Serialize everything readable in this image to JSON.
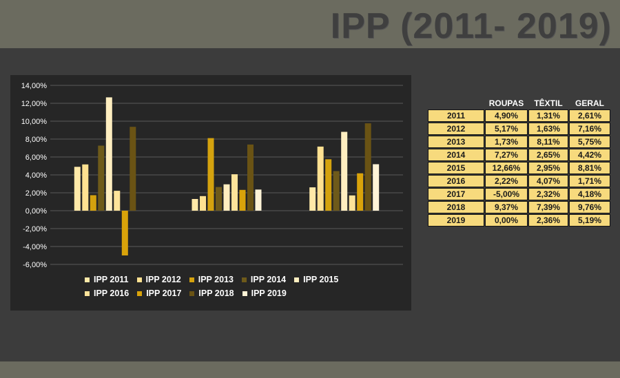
{
  "title": "IPP (2011- 2019)",
  "colors": {
    "background": "#6b6b5f",
    "panel": "#3c3c3c",
    "chart_bg": "#262626",
    "table_cell": "#f7da7d"
  },
  "chart_data": {
    "type": "bar",
    "categories": [
      "ROUPAS",
      "TÊXTIL",
      "GERAL"
    ],
    "ylim": [
      -6,
      14
    ],
    "yticks": [
      "14,00%",
      "12,00%",
      "10,00%",
      "8,00%",
      "6,00%",
      "4,00%",
      "2,00%",
      "0,00%",
      "-2,00%",
      "-4,00%",
      "-6,00%"
    ],
    "grid": true,
    "legend_position": "bottom",
    "category_labels_visible": false,
    "series": [
      {
        "name": "IPP 2011",
        "color": "#ffe9a8",
        "values": [
          4.9,
          1.31,
          2.61
        ]
      },
      {
        "name": "IPP 2012",
        "color": "#ffe191",
        "values": [
          5.17,
          1.63,
          7.16
        ]
      },
      {
        "name": "IPP 2013",
        "color": "#d4a20e",
        "values": [
          1.73,
          8.11,
          5.75
        ]
      },
      {
        "name": "IPP 2014",
        "color": "#6e5a1a",
        "values": [
          7.27,
          2.65,
          4.42
        ]
      },
      {
        "name": "IPP 2015",
        "color": "#ffeec0",
        "values": [
          12.66,
          2.95,
          8.81
        ]
      },
      {
        "name": "IPP 2016",
        "color": "#fde39a",
        "values": [
          2.22,
          4.07,
          1.71
        ]
      },
      {
        "name": "IPP 2017",
        "color": "#d9a30a",
        "values": [
          -5.0,
          2.32,
          4.18
        ]
      },
      {
        "name": "IPP 2018",
        "color": "#6a5314",
        "values": [
          9.37,
          7.39,
          9.76
        ]
      },
      {
        "name": "IPP 2019",
        "color": "#fff3d6",
        "values": [
          0.0,
          2.36,
          5.19
        ]
      }
    ]
  },
  "table": {
    "headers": [
      "",
      "ROUPAS",
      "TÊXTIL",
      "GERAL"
    ],
    "rows": [
      [
        "2011",
        "4,90%",
        "1,31%",
        "2,61%"
      ],
      [
        "2012",
        "5,17%",
        "1,63%",
        "7,16%"
      ],
      [
        "2013",
        "1,73%",
        "8,11%",
        "5,75%"
      ],
      [
        "2014",
        "7,27%",
        "2,65%",
        "4,42%"
      ],
      [
        "2015",
        "12,66%",
        "2,95%",
        "8,81%"
      ],
      [
        "2016",
        "2,22%",
        "4,07%",
        "1,71%"
      ],
      [
        "2017",
        "-5,00%",
        "2,32%",
        "4,18%"
      ],
      [
        "2018",
        "9,37%",
        "7,39%",
        "9,76%"
      ],
      [
        "2019",
        "0,00%",
        "2,36%",
        "5,19%"
      ]
    ]
  }
}
